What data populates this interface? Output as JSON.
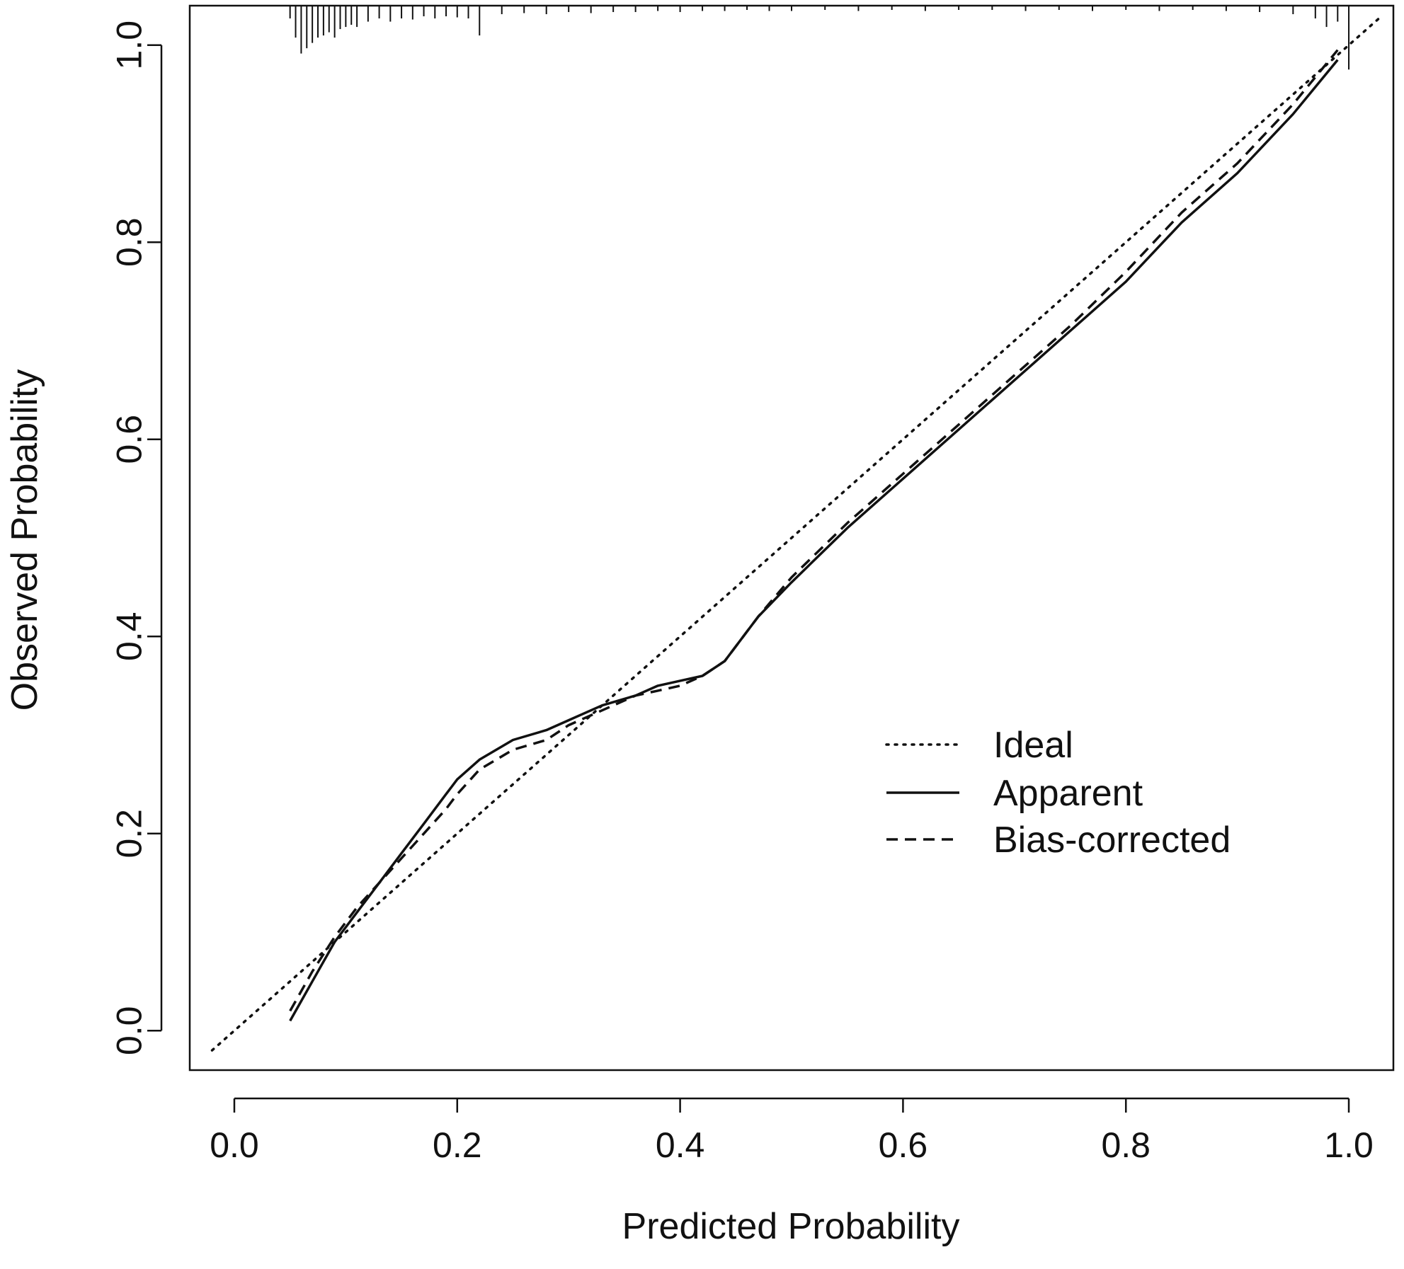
{
  "chart_data": {
    "type": "line",
    "title": "",
    "xlabel": "Predicted Probability",
    "ylabel": "Observed Probability",
    "xlim": [
      -0.04,
      1.04
    ],
    "ylim": [
      -0.04,
      1.04
    ],
    "x_ticks": [
      0.0,
      0.2,
      0.4,
      0.6,
      0.8,
      1.0
    ],
    "x_tick_labels": [
      "0.0",
      "0.2",
      "0.4",
      "0.6",
      "0.8",
      "1.0"
    ],
    "y_ticks": [
      0.0,
      0.2,
      0.4,
      0.6,
      0.8,
      1.0
    ],
    "y_tick_labels": [
      "0.0",
      "0.2",
      "0.4",
      "0.6",
      "0.8",
      "1.0"
    ],
    "grid": false,
    "legend_position": "center-right",
    "series": [
      {
        "name": "Ideal",
        "style": "dotted",
        "x": [
          -0.02,
          1.03
        ],
        "y": [
          -0.02,
          1.03
        ]
      },
      {
        "name": "Apparent",
        "style": "solid",
        "x": [
          0.05,
          0.07,
          0.09,
          0.11,
          0.13,
          0.15,
          0.17,
          0.19,
          0.2,
          0.22,
          0.25,
          0.28,
          0.3,
          0.33,
          0.36,
          0.38,
          0.4,
          0.42,
          0.44,
          0.47,
          0.5,
          0.55,
          0.6,
          0.65,
          0.7,
          0.75,
          0.8,
          0.85,
          0.9,
          0.95,
          0.99
        ],
        "y": [
          0.01,
          0.05,
          0.09,
          0.12,
          0.15,
          0.18,
          0.21,
          0.24,
          0.255,
          0.275,
          0.295,
          0.305,
          0.315,
          0.33,
          0.34,
          0.35,
          0.355,
          0.36,
          0.375,
          0.42,
          0.455,
          0.51,
          0.56,
          0.61,
          0.66,
          0.71,
          0.76,
          0.82,
          0.87,
          0.93,
          0.985
        ]
      },
      {
        "name": "Bias-corrected",
        "style": "dashed",
        "x": [
          0.05,
          0.07,
          0.09,
          0.11,
          0.13,
          0.15,
          0.17,
          0.19,
          0.2,
          0.22,
          0.25,
          0.28,
          0.3,
          0.33,
          0.36,
          0.38,
          0.4,
          0.42,
          0.44,
          0.47,
          0.5,
          0.55,
          0.6,
          0.65,
          0.7,
          0.75,
          0.8,
          0.85,
          0.9,
          0.95,
          0.99
        ],
        "y": [
          0.02,
          0.06,
          0.095,
          0.125,
          0.15,
          0.175,
          0.2,
          0.225,
          0.24,
          0.265,
          0.285,
          0.295,
          0.31,
          0.325,
          0.34,
          0.345,
          0.35,
          0.36,
          0.375,
          0.42,
          0.46,
          0.515,
          0.565,
          0.615,
          0.665,
          0.715,
          0.77,
          0.83,
          0.88,
          0.94,
          0.995
        ]
      }
    ],
    "rug": {
      "position": "top",
      "x": [
        0.05,
        0.055,
        0.06,
        0.065,
        0.07,
        0.075,
        0.08,
        0.085,
        0.09,
        0.095,
        0.1,
        0.105,
        0.11,
        0.12,
        0.13,
        0.14,
        0.15,
        0.16,
        0.17,
        0.18,
        0.19,
        0.2,
        0.21,
        0.22,
        0.24,
        0.26,
        0.28,
        0.3,
        0.32,
        0.34,
        0.36,
        0.38,
        0.4,
        0.42,
        0.44,
        0.46,
        0.48,
        0.5,
        0.53,
        0.56,
        0.59,
        0.62,
        0.65,
        0.68,
        0.71,
        0.74,
        0.77,
        0.8,
        0.83,
        0.86,
        0.89,
        0.92,
        0.95,
        0.97,
        0.98,
        0.99,
        1.0
      ],
      "height": [
        0.012,
        0.03,
        0.045,
        0.04,
        0.035,
        0.03,
        0.028,
        0.025,
        0.03,
        0.022,
        0.02,
        0.018,
        0.02,
        0.015,
        0.012,
        0.015,
        0.012,
        0.013,
        0.01,
        0.012,
        0.01,
        0.011,
        0.012,
        0.028,
        0.008,
        0.007,
        0.008,
        0.006,
        0.007,
        0.006,
        0.006,
        0.005,
        0.006,
        0.005,
        0.005,
        0.004,
        0.005,
        0.005,
        0.004,
        0.005,
        0.004,
        0.005,
        0.004,
        0.004,
        0.005,
        0.004,
        0.005,
        0.004,
        0.005,
        0.004,
        0.005,
        0.006,
        0.008,
        0.012,
        0.02,
        0.015,
        0.06
      ]
    }
  }
}
